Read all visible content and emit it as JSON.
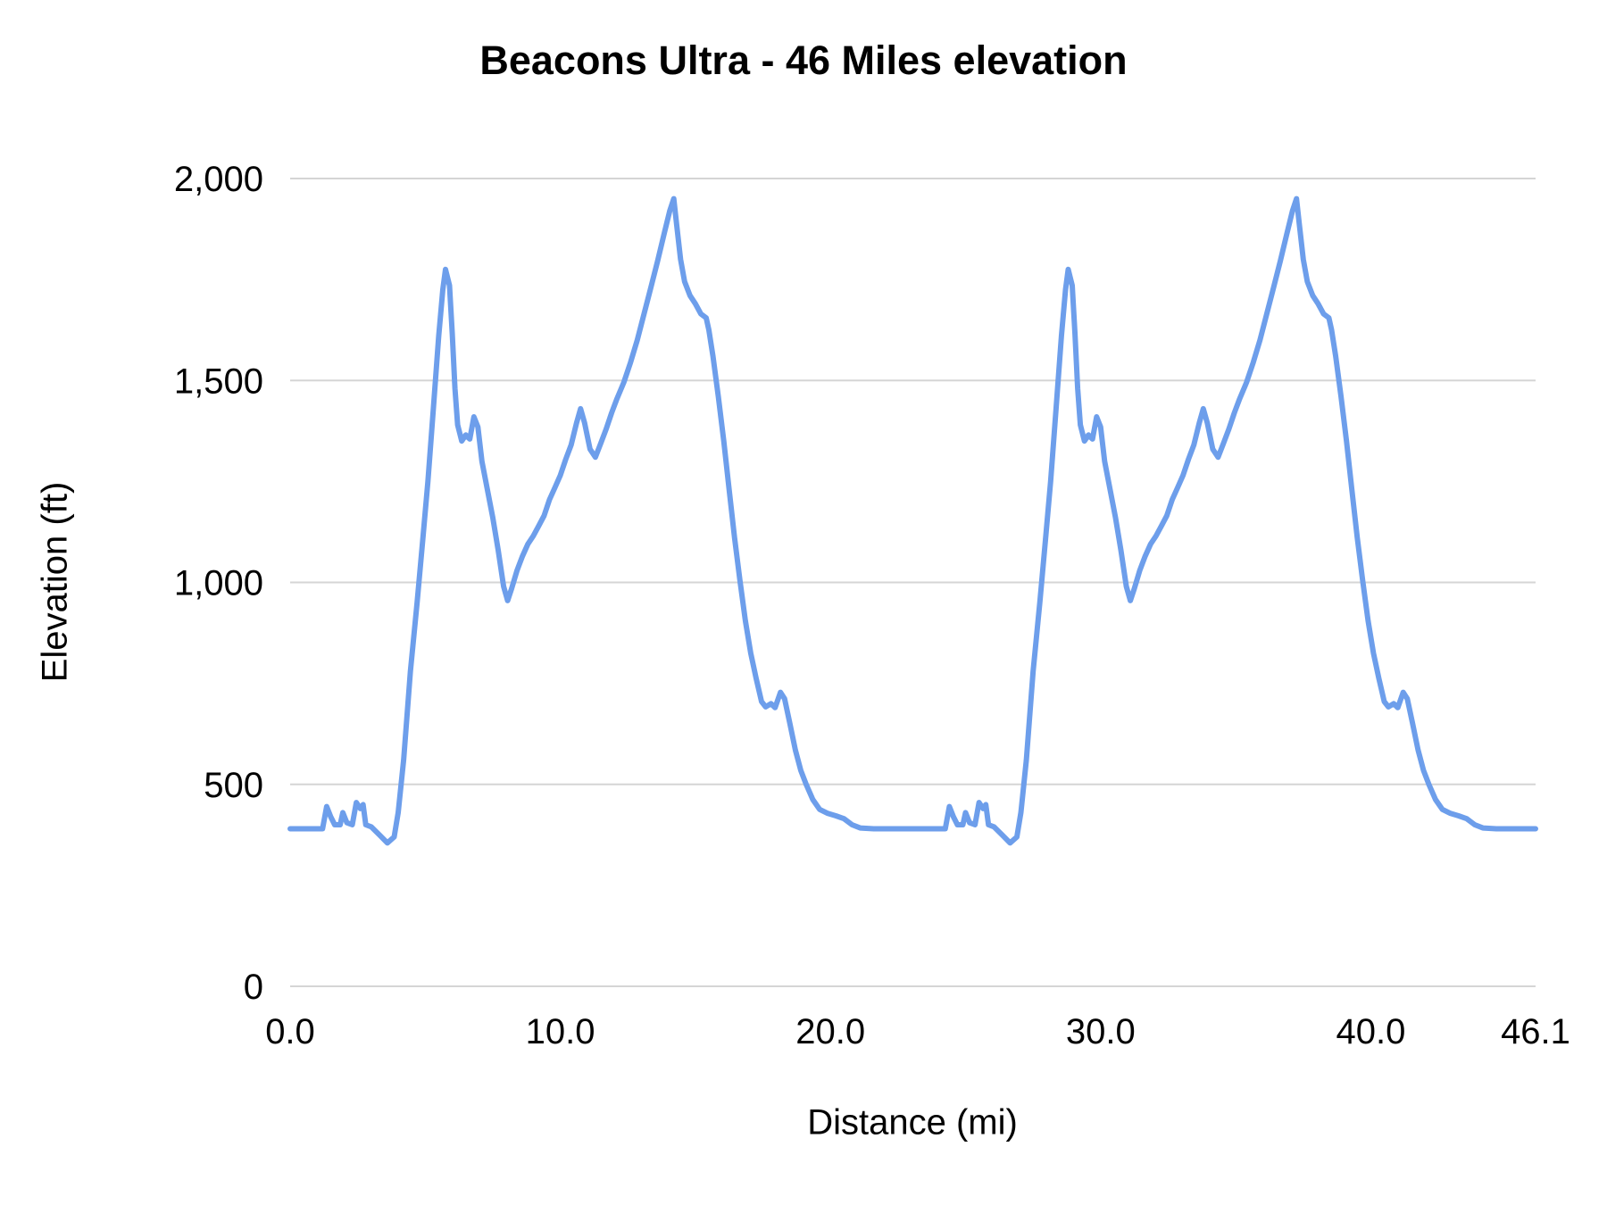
{
  "chart_data": {
    "type": "line",
    "title": "Beacons Ultra - 46 Miles elevation",
    "xlabel": "Distance (mi)",
    "ylabel": "Elevation (ft)",
    "xlim": [
      0,
      46.1
    ],
    "ylim": [
      0,
      2000
    ],
    "grid": "horizontal",
    "legend": "none",
    "colors": {
      "line": "#6d9eeb",
      "grid": "#d5d5d5",
      "text": "#000000",
      "background": "#ffffff"
    },
    "xticks": [
      {
        "v": 0,
        "label": "0.0"
      },
      {
        "v": 10,
        "label": "10.0"
      },
      {
        "v": 20,
        "label": "20.0"
      },
      {
        "v": 30,
        "label": "30.0"
      },
      {
        "v": 40,
        "label": "40.0"
      },
      {
        "v": 46.1,
        "label": "46.1"
      }
    ],
    "yticks": [
      {
        "v": 0,
        "label": "0"
      },
      {
        "v": 500,
        "label": "500"
      },
      {
        "v": 1000,
        "label": "1,000"
      },
      {
        "v": 1500,
        "label": "1,500"
      },
      {
        "v": 2000,
        "label": "2,000"
      }
    ],
    "points": [
      [
        0,
        390
      ],
      [
        0.6,
        390
      ],
      [
        1.2,
        390
      ],
      [
        1.35,
        445
      ],
      [
        1.5,
        420
      ],
      [
        1.65,
        400
      ],
      [
        1.85,
        400
      ],
      [
        1.95,
        430
      ],
      [
        2.1,
        405
      ],
      [
        2.3,
        400
      ],
      [
        2.45,
        455
      ],
      [
        2.6,
        440
      ],
      [
        2.7,
        450
      ],
      [
        2.8,
        400
      ],
      [
        3.0,
        395
      ],
      [
        3.3,
        375
      ],
      [
        3.6,
        355
      ],
      [
        3.85,
        370
      ],
      [
        4.0,
        430
      ],
      [
        4.2,
        560
      ],
      [
        4.45,
        780
      ],
      [
        4.7,
        950
      ],
      [
        4.9,
        1100
      ],
      [
        5.1,
        1250
      ],
      [
        5.3,
        1430
      ],
      [
        5.5,
        1610
      ],
      [
        5.65,
        1725
      ],
      [
        5.75,
        1775
      ],
      [
        5.9,
        1735
      ],
      [
        6.0,
        1615
      ],
      [
        6.1,
        1480
      ],
      [
        6.2,
        1390
      ],
      [
        6.35,
        1350
      ],
      [
        6.5,
        1365
      ],
      [
        6.65,
        1355
      ],
      [
        6.8,
        1410
      ],
      [
        6.95,
        1385
      ],
      [
        7.1,
        1300
      ],
      [
        7.3,
        1230
      ],
      [
        7.5,
        1160
      ],
      [
        7.7,
        1080
      ],
      [
        7.9,
        990
      ],
      [
        8.05,
        955
      ],
      [
        8.2,
        985
      ],
      [
        8.4,
        1030
      ],
      [
        8.6,
        1065
      ],
      [
        8.8,
        1095
      ],
      [
        9.0,
        1115
      ],
      [
        9.2,
        1140
      ],
      [
        9.4,
        1165
      ],
      [
        9.6,
        1205
      ],
      [
        9.8,
        1235
      ],
      [
        10.0,
        1265
      ],
      [
        10.2,
        1305
      ],
      [
        10.4,
        1340
      ],
      [
        10.6,
        1395
      ],
      [
        10.75,
        1430
      ],
      [
        10.9,
        1395
      ],
      [
        11.1,
        1330
      ],
      [
        11.3,
        1310
      ],
      [
        11.5,
        1345
      ],
      [
        11.7,
        1380
      ],
      [
        11.9,
        1420
      ],
      [
        12.1,
        1455
      ],
      [
        12.35,
        1495
      ],
      [
        12.6,
        1545
      ],
      [
        12.85,
        1600
      ],
      [
        13.1,
        1665
      ],
      [
        13.35,
        1730
      ],
      [
        13.6,
        1795
      ],
      [
        13.85,
        1865
      ],
      [
        14.05,
        1920
      ],
      [
        14.2,
        1950
      ],
      [
        14.3,
        1890
      ],
      [
        14.45,
        1800
      ],
      [
        14.6,
        1745
      ],
      [
        14.8,
        1710
      ],
      [
        15.0,
        1690
      ],
      [
        15.2,
        1665
      ],
      [
        15.4,
        1655
      ],
      [
        15.5,
        1625
      ],
      [
        15.65,
        1560
      ],
      [
        15.85,
        1460
      ],
      [
        16.05,
        1350
      ],
      [
        16.25,
        1230
      ],
      [
        16.45,
        1110
      ],
      [
        16.65,
        1005
      ],
      [
        16.85,
        905
      ],
      [
        17.05,
        825
      ],
      [
        17.25,
        762
      ],
      [
        17.45,
        705
      ],
      [
        17.6,
        692
      ],
      [
        17.8,
        700
      ],
      [
        17.95,
        690
      ],
      [
        18.15,
        728
      ],
      [
        18.3,
        712
      ],
      [
        18.5,
        650
      ],
      [
        18.7,
        585
      ],
      [
        18.9,
        535
      ],
      [
        19.1,
        500
      ],
      [
        19.35,
        462
      ],
      [
        19.6,
        438
      ],
      [
        19.9,
        428
      ],
      [
        20.2,
        422
      ],
      [
        20.5,
        415
      ],
      [
        20.8,
        400
      ],
      [
        21.1,
        392
      ],
      [
        21.6,
        390
      ],
      [
        22.2,
        390
      ],
      [
        22.8,
        390
      ],
      [
        23.05,
        390
      ],
      [
        23.65,
        390
      ],
      [
        24.25,
        390
      ],
      [
        24.4,
        445
      ],
      [
        24.55,
        420
      ],
      [
        24.7,
        400
      ],
      [
        24.9,
        400
      ],
      [
        25.0,
        430
      ],
      [
        25.15,
        405
      ],
      [
        25.35,
        400
      ],
      [
        25.5,
        455
      ],
      [
        25.65,
        440
      ],
      [
        25.75,
        450
      ],
      [
        25.85,
        400
      ],
      [
        26.05,
        395
      ],
      [
        26.35,
        375
      ],
      [
        26.65,
        355
      ],
      [
        26.9,
        370
      ],
      [
        27.05,
        430
      ],
      [
        27.25,
        560
      ],
      [
        27.5,
        780
      ],
      [
        27.75,
        950
      ],
      [
        27.95,
        1100
      ],
      [
        28.15,
        1250
      ],
      [
        28.35,
        1430
      ],
      [
        28.55,
        1610
      ],
      [
        28.7,
        1725
      ],
      [
        28.8,
        1775
      ],
      [
        28.95,
        1735
      ],
      [
        29.05,
        1615
      ],
      [
        29.15,
        1480
      ],
      [
        29.25,
        1390
      ],
      [
        29.4,
        1350
      ],
      [
        29.55,
        1365
      ],
      [
        29.7,
        1355
      ],
      [
        29.85,
        1410
      ],
      [
        30.0,
        1385
      ],
      [
        30.15,
        1300
      ],
      [
        30.35,
        1230
      ],
      [
        30.55,
        1160
      ],
      [
        30.75,
        1080
      ],
      [
        30.95,
        990
      ],
      [
        31.1,
        955
      ],
      [
        31.25,
        985
      ],
      [
        31.45,
        1030
      ],
      [
        31.65,
        1065
      ],
      [
        31.85,
        1095
      ],
      [
        32.05,
        1115
      ],
      [
        32.25,
        1140
      ],
      [
        32.45,
        1165
      ],
      [
        32.65,
        1205
      ],
      [
        32.85,
        1235
      ],
      [
        33.05,
        1265
      ],
      [
        33.25,
        1305
      ],
      [
        33.45,
        1340
      ],
      [
        33.65,
        1395
      ],
      [
        33.8,
        1430
      ],
      [
        33.95,
        1395
      ],
      [
        34.15,
        1330
      ],
      [
        34.35,
        1310
      ],
      [
        34.55,
        1345
      ],
      [
        34.75,
        1380
      ],
      [
        34.95,
        1420
      ],
      [
        35.15,
        1455
      ],
      [
        35.4,
        1495
      ],
      [
        35.65,
        1545
      ],
      [
        35.9,
        1600
      ],
      [
        36.15,
        1665
      ],
      [
        36.4,
        1730
      ],
      [
        36.65,
        1795
      ],
      [
        36.9,
        1865
      ],
      [
        37.1,
        1920
      ],
      [
        37.25,
        1950
      ],
      [
        37.35,
        1890
      ],
      [
        37.5,
        1800
      ],
      [
        37.65,
        1745
      ],
      [
        37.85,
        1710
      ],
      [
        38.05,
        1690
      ],
      [
        38.25,
        1665
      ],
      [
        38.45,
        1655
      ],
      [
        38.55,
        1625
      ],
      [
        38.7,
        1560
      ],
      [
        38.9,
        1460
      ],
      [
        39.1,
        1350
      ],
      [
        39.3,
        1230
      ],
      [
        39.5,
        1110
      ],
      [
        39.7,
        1005
      ],
      [
        39.9,
        905
      ],
      [
        40.1,
        825
      ],
      [
        40.3,
        762
      ],
      [
        40.5,
        705
      ],
      [
        40.65,
        692
      ],
      [
        40.85,
        700
      ],
      [
        41.0,
        690
      ],
      [
        41.2,
        728
      ],
      [
        41.35,
        712
      ],
      [
        41.55,
        650
      ],
      [
        41.75,
        585
      ],
      [
        41.95,
        535
      ],
      [
        42.15,
        500
      ],
      [
        42.4,
        462
      ],
      [
        42.65,
        438
      ],
      [
        42.95,
        428
      ],
      [
        43.25,
        422
      ],
      [
        43.55,
        415
      ],
      [
        43.85,
        400
      ],
      [
        44.15,
        392
      ],
      [
        44.65,
        390
      ],
      [
        45.25,
        390
      ],
      [
        45.85,
        390
      ],
      [
        46.1,
        390
      ]
    ]
  }
}
